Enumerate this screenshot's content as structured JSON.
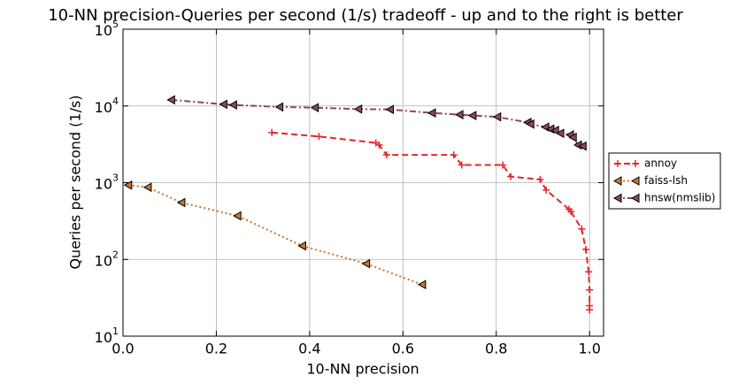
{
  "chart_data": {
    "type": "line",
    "title": "10-NN precision-Queries per second (1/s) tradeoff - up and to the right is better",
    "x_label": "10-NN precision",
    "y_label": "Queries per second (1/s)",
    "xlim": [
      0,
      1.03
    ],
    "ylim": [
      10,
      100000
    ],
    "y_scale": "log",
    "grid": true,
    "legend_position": "outside-right",
    "xticks": [
      {
        "value": 0,
        "label": "0.0"
      },
      0.2,
      0.4,
      0.6,
      0.8,
      {
        "value": 1,
        "label": "1.0"
      }
    ],
    "yticks": [
      {
        "value": 10,
        "label": "10^1"
      },
      {
        "value": 100,
        "label": "10^2"
      },
      {
        "value": 1000,
        "label": "10^3"
      },
      {
        "value": 10000,
        "label": "10^4"
      },
      {
        "value": 100000,
        "label": "10^5"
      }
    ],
    "series": [
      {
        "name": "annoy",
        "color": "#e3262a",
        "linestyle": "dashed",
        "marker": "plus",
        "x": [
          0.319,
          0.42,
          0.542,
          0.549,
          0.565,
          0.709,
          0.726,
          0.814,
          0.831,
          0.894,
          0.907,
          0.956,
          0.96,
          0.983,
          0.992,
          0.998,
          1.0,
          1.0,
          1.0
        ],
        "values": [
          4500,
          4000,
          3300,
          3100,
          2300,
          2300,
          1700,
          1700,
          1200,
          1100,
          800,
          450,
          420,
          250,
          135,
          69,
          40,
          25,
          22
        ]
      },
      {
        "name": "faiss-lsh",
        "color": "#c87533",
        "linestyle": "dotted",
        "marker": "triangle-left",
        "x": [
          0.011,
          0.053,
          0.125,
          0.245,
          0.384,
          0.521,
          0.641
        ],
        "values": [
          930,
          870,
          550,
          370,
          150,
          88,
          47
        ]
      },
      {
        "name": "hnsw(nmslib)",
        "color": "#8b4a5a",
        "linestyle": "dashdot",
        "marker": "triangle-left",
        "x": [
          0.103,
          0.215,
          0.236,
          0.335,
          0.411,
          0.504,
          0.572,
          0.662,
          0.721,
          0.749,
          0.802,
          0.867,
          0.873,
          0.905,
          0.916,
          0.926,
          0.937,
          0.958,
          0.964,
          0.975,
          0.985
        ],
        "values": [
          12000,
          10500,
          10300,
          9700,
          9500,
          9100,
          9000,
          8100,
          7700,
          7500,
          7200,
          6100,
          5800,
          5300,
          5000,
          4800,
          4400,
          4200,
          3900,
          3100,
          3000
        ]
      }
    ]
  }
}
